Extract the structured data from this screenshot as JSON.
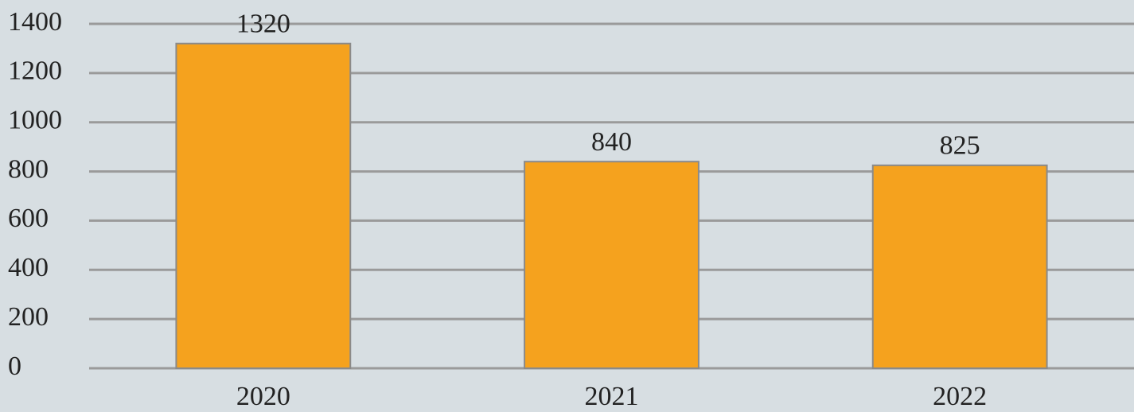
{
  "chart_data": {
    "type": "bar",
    "categories": [
      "2020",
      "2021",
      "2022"
    ],
    "values": [
      1320,
      840,
      825
    ],
    "color": "#f5a21e",
    "ylim": [
      0,
      1400
    ],
    "yticks": [
      0,
      200,
      400,
      600,
      800,
      1000,
      1200,
      1400
    ],
    "grid": true
  }
}
